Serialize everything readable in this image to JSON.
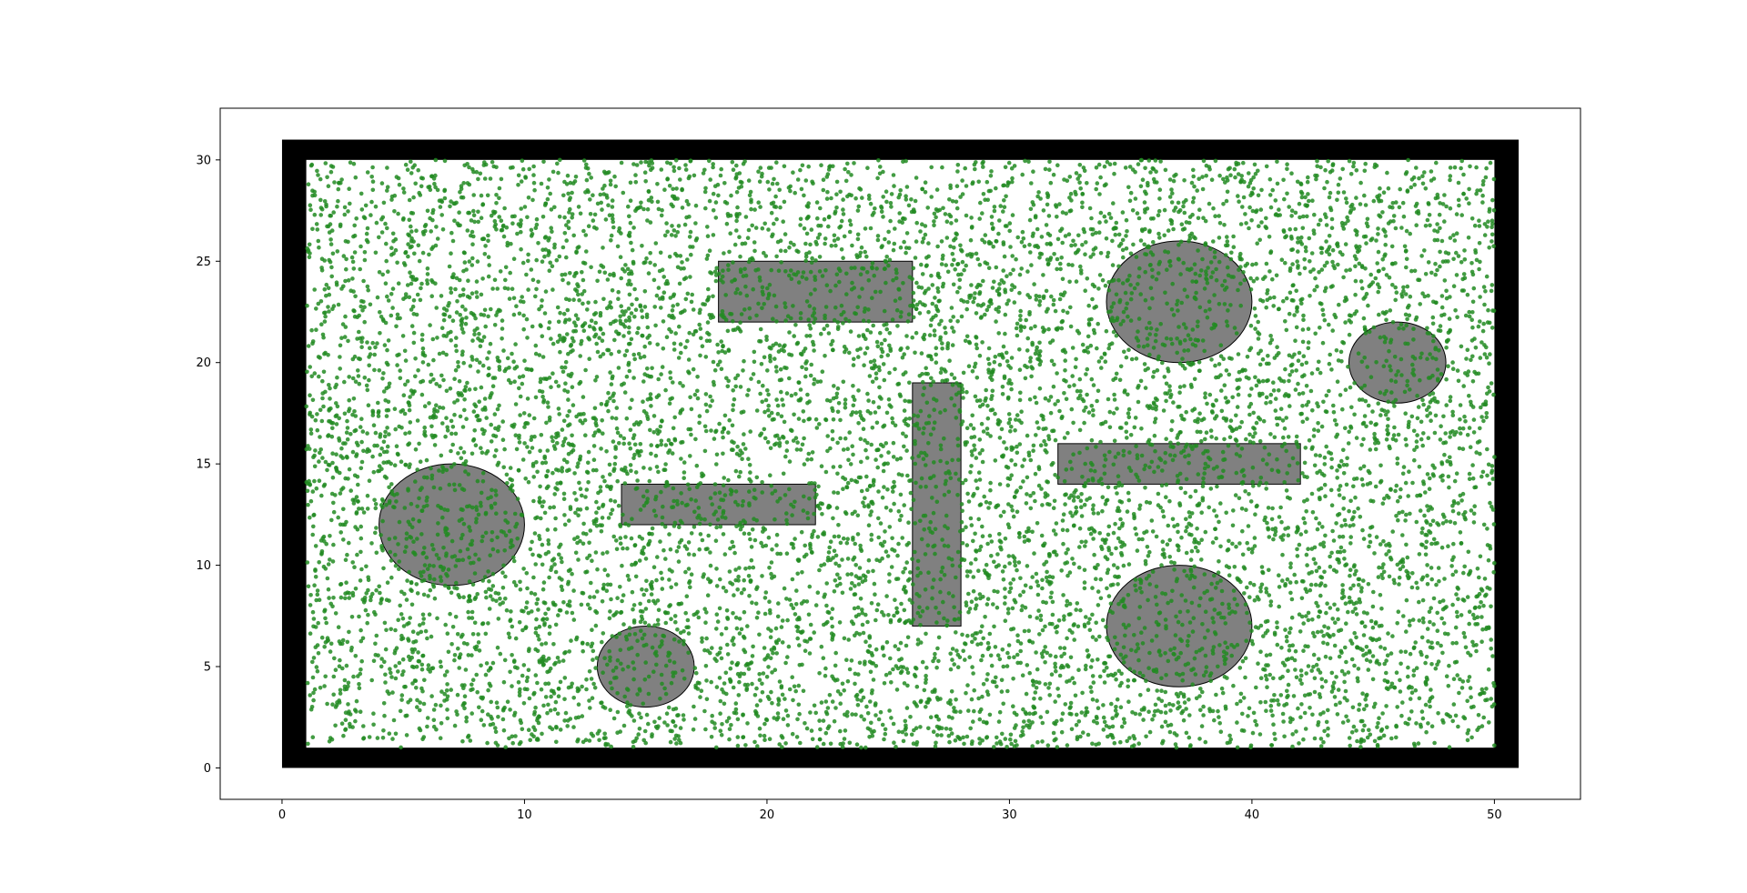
{
  "chart_data": {
    "type": "scatter",
    "title": "",
    "xlabel": "",
    "ylabel": "",
    "xlim": [
      -2.55,
      53.55
    ],
    "ylim": [
      -1.55,
      32.55
    ],
    "xticks": [
      0,
      10,
      20,
      30,
      40,
      50
    ],
    "yticks": [
      0,
      5,
      10,
      15,
      20,
      25,
      30
    ],
    "grid": false,
    "legend": "none",
    "colors": {
      "points": "#228B22",
      "obstacles": "#808080",
      "obstacle_edge": "#000000",
      "boundary": "#000000"
    },
    "boundary": {
      "outer": {
        "x": 0,
        "y": 0,
        "width": 51,
        "height": 31
      },
      "inner": {
        "x": 1,
        "y": 1,
        "width": 49,
        "height": 29
      }
    },
    "obstacles": {
      "rectangles": [
        {
          "x": 18,
          "y": 22,
          "width": 8,
          "height": 3
        },
        {
          "x": 14,
          "y": 12,
          "width": 8,
          "height": 2
        },
        {
          "x": 26,
          "y": 7,
          "width": 2,
          "height": 12
        },
        {
          "x": 32,
          "y": 14,
          "width": 10,
          "height": 2
        }
      ],
      "ellipses": [
        {
          "cx": 7,
          "cy": 12,
          "rx": 3,
          "ry": 3
        },
        {
          "cx": 15,
          "cy": 5,
          "rx": 2,
          "ry": 2
        },
        {
          "cx": 37,
          "cy": 23,
          "rx": 3,
          "ry": 3
        },
        {
          "cx": 37,
          "cy": 7,
          "rx": 3,
          "ry": 3
        },
        {
          "cx": 46,
          "cy": 20,
          "rx": 2,
          "ry": 2
        }
      ]
    },
    "points": {
      "description": "uniform random sample of green points",
      "count": 10000,
      "x_range": [
        1,
        50
      ],
      "y_range": [
        1,
        30
      ]
    }
  }
}
